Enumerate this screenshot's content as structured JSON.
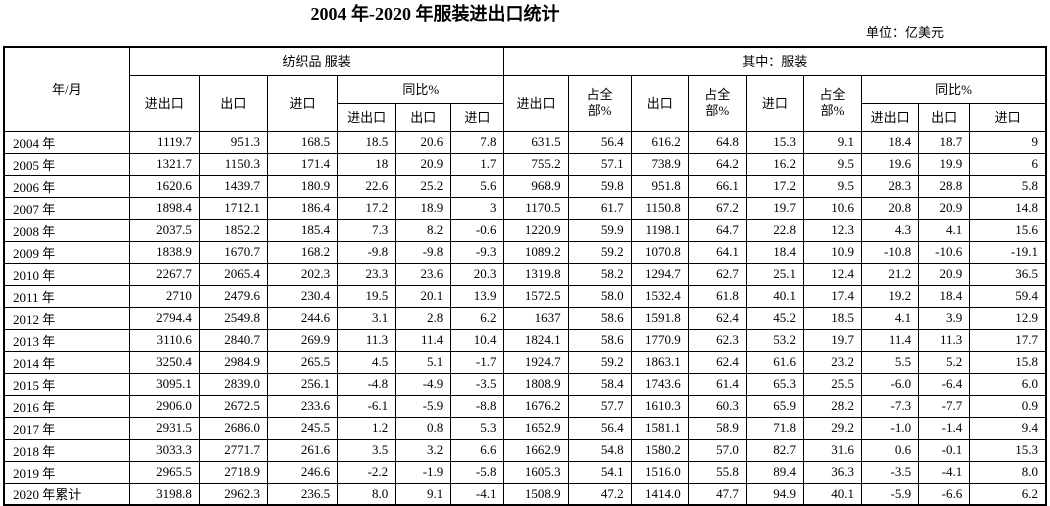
{
  "page": {
    "title": "2004 年-2020 年服装进出口统计",
    "unit_note": "单位：亿美元"
  },
  "table": {
    "headers": {
      "year_month": "年/月",
      "group_textile": "纺织品 服装",
      "group_apparel": "其中：服装",
      "import_export": "进出口",
      "export": "出口",
      "import": "进口",
      "yoy": "同比%",
      "share": "占全部%"
    },
    "rows": [
      {
        "label": "2004 年",
        "values": [
          "1119.7",
          "951.3",
          "168.5",
          "18.5",
          "20.6",
          "7.8",
          "631.5",
          "56.4",
          "616.2",
          "64.8",
          "15.3",
          "9.1",
          "18.4",
          "18.7",
          "9"
        ]
      },
      {
        "label": "2005 年",
        "values": [
          "1321.7",
          "1150.3",
          "171.4",
          "18",
          "20.9",
          "1.7",
          "755.2",
          "57.1",
          "738.9",
          "64.2",
          "16.2",
          "9.5",
          "19.6",
          "19.9",
          "6"
        ]
      },
      {
        "label": "2006 年",
        "values": [
          "1620.6",
          "1439.7",
          "180.9",
          "22.6",
          "25.2",
          "5.6",
          "968.9",
          "59.8",
          "951.8",
          "66.1",
          "17.2",
          "9.5",
          "28.3",
          "28.8",
          "5.8"
        ]
      },
      {
        "label": "2007 年",
        "values": [
          "1898.4",
          "1712.1",
          "186.4",
          "17.2",
          "18.9",
          "3",
          "1170.5",
          "61.7",
          "1150.8",
          "67.2",
          "19.7",
          "10.6",
          "20.8",
          "20.9",
          "14.8"
        ]
      },
      {
        "label": "2008 年",
        "values": [
          "2037.5",
          "1852.2",
          "185.4",
          "7.3",
          "8.2",
          "-0.6",
          "1220.9",
          "59.9",
          "1198.1",
          "64.7",
          "22.8",
          "12.3",
          "4.3",
          "4.1",
          "15.6"
        ]
      },
      {
        "label": "2009 年",
        "values": [
          "1838.9",
          "1670.7",
          "168.2",
          "-9.8",
          "-9.8",
          "-9.3",
          "1089.2",
          "59.2",
          "1070.8",
          "64.1",
          "18.4",
          "10.9",
          "-10.8",
          "-10.6",
          "-19.1"
        ]
      },
      {
        "label": "2010 年",
        "values": [
          "2267.7",
          "2065.4",
          "202.3",
          "23.3",
          "23.6",
          "20.3",
          "1319.8",
          "58.2",
          "1294.7",
          "62.7",
          "25.1",
          "12.4",
          "21.2",
          "20.9",
          "36.5"
        ]
      },
      {
        "label": "2011 年",
        "values": [
          "2710",
          "2479.6",
          "230.4",
          "19.5",
          "20.1",
          "13.9",
          "1572.5",
          "58.0",
          "1532.4",
          "61.8",
          "40.1",
          "17.4",
          "19.2",
          "18.4",
          "59.4"
        ]
      },
      {
        "label": "2012 年",
        "values": [
          "2794.4",
          "2549.8",
          "244.6",
          "3.1",
          "2.8",
          "6.2",
          "1637",
          "58.6",
          "1591.8",
          "62.4",
          "45.2",
          "18.5",
          "4.1",
          "3.9",
          "12.9"
        ]
      },
      {
        "label": "2013 年",
        "values": [
          "3110.6",
          "2840.7",
          "269.9",
          "11.3",
          "11.4",
          "10.4",
          "1824.1",
          "58.6",
          "1770.9",
          "62.3",
          "53.2",
          "19.7",
          "11.4",
          "11.3",
          "17.7"
        ]
      },
      {
        "label": "2014 年",
        "values": [
          "3250.4",
          "2984.9",
          "265.5",
          "4.5",
          "5.1",
          "-1.7",
          "1924.7",
          "59.2",
          "1863.1",
          "62.4",
          "61.6",
          "23.2",
          "5.5",
          "5.2",
          "15.8"
        ]
      },
      {
        "label": "2015 年",
        "values": [
          "3095.1",
          "2839.0",
          "256.1",
          "-4.8",
          "-4.9",
          "-3.5",
          "1808.9",
          "58.4",
          "1743.6",
          "61.4",
          "65.3",
          "25.5",
          "-6.0",
          "-6.4",
          "6.0"
        ]
      },
      {
        "label": "2016 年",
        "values": [
          "2906.0",
          "2672.5",
          "233.6",
          "-6.1",
          "-5.9",
          "-8.8",
          "1676.2",
          "57.7",
          "1610.3",
          "60.3",
          "65.9",
          "28.2",
          "-7.3",
          "-7.7",
          "0.9"
        ]
      },
      {
        "label": "2017 年",
        "values": [
          "2931.5",
          "2686.0",
          "245.5",
          "1.2",
          "0.8",
          "5.3",
          "1652.9",
          "56.4",
          "1581.1",
          "58.9",
          "71.8",
          "29.2",
          "-1.0",
          "-1.4",
          "9.4"
        ]
      },
      {
        "label": "2018 年",
        "values": [
          "3033.3",
          "2771.7",
          "261.6",
          "3.5",
          "3.2",
          "6.6",
          "1662.9",
          "54.8",
          "1580.2",
          "57.0",
          "82.7",
          "31.6",
          "0.6",
          "-0.1",
          "15.3"
        ]
      },
      {
        "label": "2019 年",
        "values": [
          "2965.5",
          "2718.9",
          "246.6",
          "-2.2",
          "-1.9",
          "-5.8",
          "1605.3",
          "54.1",
          "1516.0",
          "55.8",
          "89.4",
          "36.3",
          "-3.5",
          "-4.1",
          "8.0"
        ]
      },
      {
        "label": "2020 年累计",
        "values": [
          "3198.8",
          "2962.3",
          "236.5",
          "8.0",
          "9.1",
          "-4.1",
          "1508.9",
          "47.2",
          "1414.0",
          "47.7",
          "94.9",
          "40.1",
          "-5.9",
          "-6.6",
          "6.2"
        ]
      }
    ]
  }
}
